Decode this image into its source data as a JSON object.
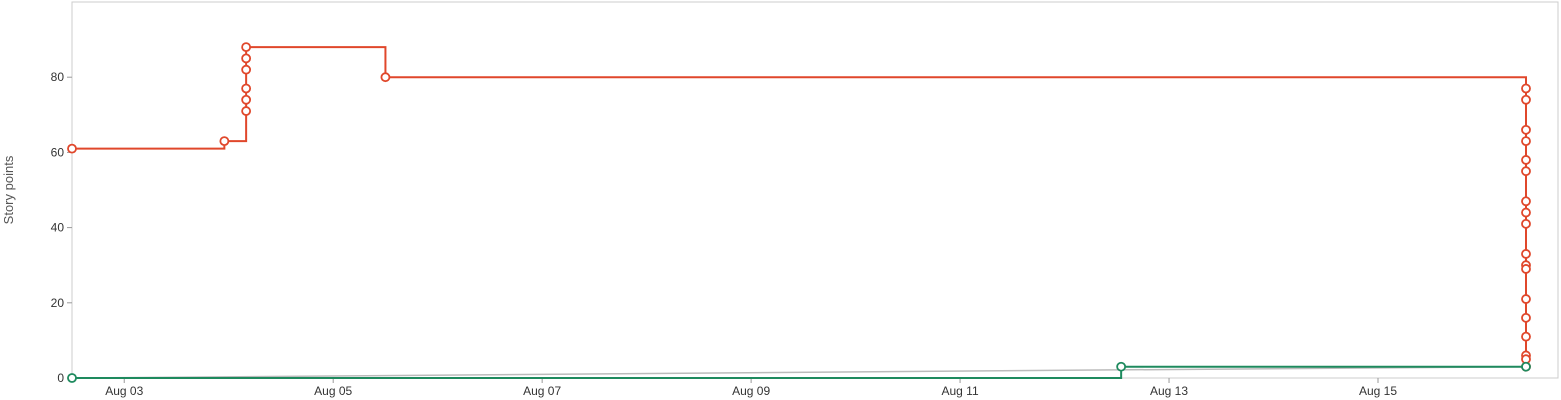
{
  "chart_data": {
    "type": "line",
    "title": "",
    "ylabel": "Story points",
    "xlabel": "",
    "x_axis": {
      "type": "date",
      "range": [
        "2023-08-02T12:00",
        "2023-08-16T10:00"
      ],
      "ticks": [
        {
          "date": "2023-08-03",
          "label": "Aug 03"
        },
        {
          "date": "2023-08-05",
          "label": "Aug 05"
        },
        {
          "date": "2023-08-07",
          "label": "Aug 07"
        },
        {
          "date": "2023-08-09",
          "label": "Aug 09"
        },
        {
          "date": "2023-08-11",
          "label": "Aug 11"
        },
        {
          "date": "2023-08-13",
          "label": "Aug 13"
        },
        {
          "date": "2023-08-15",
          "label": "Aug 15"
        }
      ]
    },
    "y_axis": {
      "range": [
        0,
        100
      ],
      "ticks": [
        0,
        20,
        40,
        60,
        80
      ]
    },
    "grid": false,
    "legend": "none",
    "series": [
      {
        "id": "scope",
        "color": "#e0472b",
        "line": "step",
        "markers": true,
        "points": [
          {
            "x": "2023-08-02T12:00",
            "y": 61
          },
          {
            "x": "2023-08-03T23:00",
            "y": 63
          },
          {
            "x": "2023-08-04T04:00",
            "y": 71
          },
          {
            "x": "2023-08-04T04:00",
            "y": 74
          },
          {
            "x": "2023-08-04T04:00",
            "y": 77
          },
          {
            "x": "2023-08-04T04:00",
            "y": 82
          },
          {
            "x": "2023-08-04T04:00",
            "y": 85
          },
          {
            "x": "2023-08-04T04:00",
            "y": 88
          },
          {
            "x": "2023-08-05T12:00",
            "y": 80
          },
          {
            "x": "2023-08-16T10:00",
            "y": 77
          },
          {
            "x": "2023-08-16T10:00",
            "y": 74
          },
          {
            "x": "2023-08-16T10:00",
            "y": 66
          },
          {
            "x": "2023-08-16T10:00",
            "y": 63
          },
          {
            "x": "2023-08-16T10:00",
            "y": 58
          },
          {
            "x": "2023-08-16T10:00",
            "y": 55
          },
          {
            "x": "2023-08-16T10:00",
            "y": 47
          },
          {
            "x": "2023-08-16T10:00",
            "y": 44
          },
          {
            "x": "2023-08-16T10:00",
            "y": 41
          },
          {
            "x": "2023-08-16T10:00",
            "y": 33
          },
          {
            "x": "2023-08-16T10:00",
            "y": 30
          },
          {
            "x": "2023-08-16T10:00",
            "y": 29
          },
          {
            "x": "2023-08-16T10:00",
            "y": 21
          },
          {
            "x": "2023-08-16T10:00",
            "y": 16
          },
          {
            "x": "2023-08-16T10:00",
            "y": 11
          },
          {
            "x": "2023-08-16T10:00",
            "y": 6
          },
          {
            "x": "2023-08-16T10:00",
            "y": 5
          },
          {
            "x": "2023-08-16T10:00",
            "y": 3
          }
        ]
      },
      {
        "id": "completed",
        "color": "#1e8a5e",
        "line": "step",
        "markers": true,
        "points": [
          {
            "x": "2023-08-02T12:00",
            "y": 0
          },
          {
            "x": "2023-08-12T13:00",
            "y": 3
          },
          {
            "x": "2023-08-16T10:00",
            "y": 3
          }
        ]
      },
      {
        "id": "trend",
        "color": "#bbbbbb",
        "line": "straight",
        "markers": false,
        "points": [
          {
            "x": "2023-08-02T12:00",
            "y": 0
          },
          {
            "x": "2023-08-16T10:00",
            "y": 3
          }
        ]
      }
    ]
  }
}
